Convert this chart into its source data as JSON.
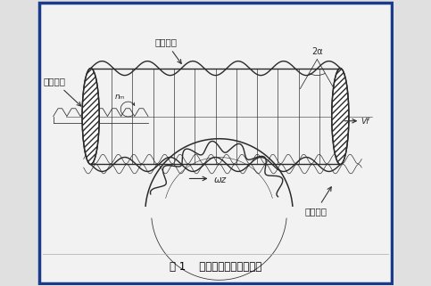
{
  "title": "图 1    蜗杆砂轮与齿轮的啮合",
  "label_worm_wheel": "蜗杆砂轮",
  "label_imaginary_rack": "假想齿条",
  "label_ground_gear": "被磨齿轮",
  "label_nm": "nₘ",
  "label_2a": "2α",
  "label_omega": "ωz",
  "label_vf": "Vf",
  "border_color": "#1a3a8a",
  "bg_color": "#f2f2f2",
  "line_color": "#2a2a2a",
  "figure_bg": "#e0e0e0",
  "fig_width": 4.83,
  "fig_height": 3.21,
  "dpi": 100
}
